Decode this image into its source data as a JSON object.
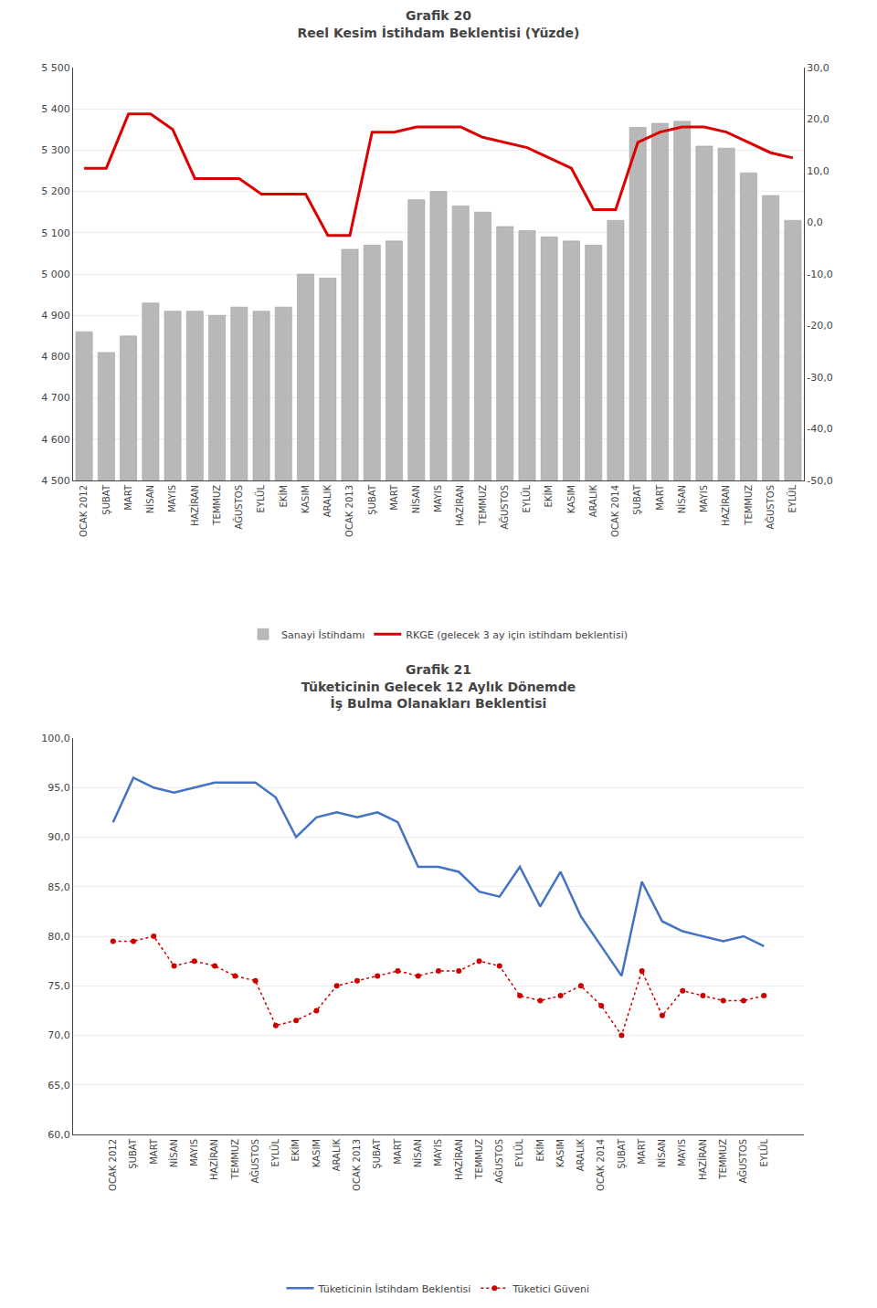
{
  "chart_data": [
    {
      "type": "bar",
      "title": "Grafik 20",
      "subtitle": "Reel Kesim İstihdam Beklentisi (Yüzde)",
      "categories": [
        "OCAK 2012",
        "ŞUBAT",
        "MART",
        "NİSAN",
        "MAYIS",
        "HAZİRAN",
        "TEMMUZ",
        "AĞUSTOS",
        "EYLÜL",
        "EKİM",
        "KASIM",
        "ARALIK",
        "OCAK 2013",
        "ŞUBAT",
        "MART",
        "NİSAN",
        "MAYIS",
        "HAZİRAN",
        "TEMMUZ",
        "AĞUSTOS",
        "EYLÜL",
        "EKİM",
        "KASIM",
        "ARALIK",
        "OCAK 2014",
        "ŞUBAT",
        "MART",
        "NİSAN",
        "MAYIS",
        "HAZİRAN",
        "TEMMUZ",
        "AĞUSTOS",
        "EYLÜL"
      ],
      "series": [
        {
          "name": "Sanayi İstihdamı",
          "type": "bar",
          "color": "#b8b8b8",
          "values": [
            4860,
            4810,
            4850,
            4930,
            4910,
            4910,
            4900,
            4920,
            4910,
            4920,
            5000,
            4990,
            5060,
            5070,
            5080,
            5180,
            5200,
            5165,
            5150,
            5115,
            5105,
            5090,
            5080,
            5070,
            5130,
            5355,
            5365,
            5370,
            5310,
            5305,
            5245,
            5190,
            5130
          ]
        },
        {
          "name": "RKGE (gelecek 3 ay için istihdam beklentisi)",
          "type": "line",
          "color": "#dd0000",
          "axis": "y2",
          "line_style": "solid",
          "values": [
            10.5,
            10.5,
            21.0,
            21.0,
            18.0,
            8.5,
            8.5,
            8.5,
            5.5,
            5.5,
            5.5,
            -2.5,
            -2.5,
            17.5,
            17.5,
            18.5,
            18.5,
            18.5,
            16.5,
            15.5,
            14.5,
            12.5,
            10.5,
            2.5,
            2.5,
            15.5,
            17.5,
            18.5,
            18.5,
            17.5,
            15.5,
            13.5,
            12.5
          ]
        }
      ],
      "ylim": [
        4500,
        5500
      ],
      "yticks": [
        {
          "value": 4500,
          "label": "4 500"
        },
        {
          "value": 4600,
          "label": "4 600"
        },
        {
          "value": 4700,
          "label": "4 700"
        },
        {
          "value": 4800,
          "label": "4 800"
        },
        {
          "value": 4900,
          "label": "4 900"
        },
        {
          "value": 5000,
          "label": "5 000"
        },
        {
          "value": 5100,
          "label": "5 100"
        },
        {
          "value": 5200,
          "label": "5 200"
        },
        {
          "value": 5300,
          "label": "5 300"
        },
        {
          "value": 5400,
          "label": "5 400"
        },
        {
          "value": 5500,
          "label": "5 500"
        }
      ],
      "y2lim": [
        -50,
        30
      ],
      "y2ticks": [
        {
          "value": -50,
          "label": "-50,0"
        },
        {
          "value": -40,
          "label": "-40,0"
        },
        {
          "value": -30,
          "label": "-30,0"
        },
        {
          "value": -20,
          "label": "-20,0"
        },
        {
          "value": -10,
          "label": "-10,0"
        },
        {
          "value": 0,
          "label": "0,0"
        },
        {
          "value": 10,
          "label": "10,0"
        },
        {
          "value": 20,
          "label": "20,0"
        },
        {
          "value": 30,
          "label": "30,0"
        }
      ],
      "grid": true,
      "legend": "bottom"
    },
    {
      "type": "line",
      "title": "Grafik 21",
      "subtitle": "Tüketicinin Gelecek 12 Aylık Dönemde\nİş Bulma Olanakları Beklentisi",
      "categories": [
        "OCAK 2012",
        "ŞUBAT",
        "MART",
        "NİSAN",
        "MAYIS",
        "HAZİRAN",
        "TEMMUZ",
        "AĞUSTOS",
        "EYLÜL",
        "EKİM",
        "KASIM",
        "ARALIK",
        "OCAK 2013",
        "ŞUBAT",
        "MART",
        "NİSAN",
        "MAYIS",
        "HAZİRAN",
        "TEMMUZ",
        "AĞUSTOS",
        "EYLÜL",
        "EKİM",
        "KASIM",
        "ARALIK",
        "OCAK 2014",
        "ŞUBAT",
        "MART",
        "NİSAN",
        "MAYIS",
        "HAZİRAN",
        "TEMMUZ",
        "AĞUSTOS",
        "EYLÜL"
      ],
      "series": [
        {
          "name": "Tüketicinin İstihdam Beklentisi",
          "type": "line",
          "color": "#4472c4",
          "line_style": "solid",
          "values": [
            91.5,
            96.0,
            95.0,
            94.5,
            95.0,
            95.5,
            95.5,
            95.5,
            94.0,
            90.0,
            92.0,
            92.5,
            92.0,
            92.5,
            91.5,
            87.0,
            87.0,
            86.5,
            84.5,
            84.0,
            87.0,
            83.0,
            86.5,
            82.0,
            79.0,
            76.0,
            85.5,
            81.5,
            80.5,
            80.0,
            79.5,
            80.0,
            79.0
          ]
        },
        {
          "name": "Tüketici Güveni",
          "type": "line",
          "color": "#cc0000",
          "line_style": "dotted",
          "marker": "circle",
          "values": [
            79.5,
            79.5,
            80.0,
            77.0,
            77.5,
            77.0,
            76.0,
            75.5,
            71.0,
            71.5,
            72.5,
            75.0,
            75.5,
            76.0,
            76.5,
            76.0,
            76.5,
            76.5,
            77.5,
            77.0,
            74.0,
            73.5,
            74.0,
            75.0,
            73.0,
            70.0,
            76.5,
            72.0,
            74.5,
            74.0,
            73.5,
            73.5,
            74.0
          ]
        }
      ],
      "ylim": [
        60.0,
        100.0
      ],
      "yticks": [
        {
          "value": 60.0,
          "label": "60,0"
        },
        {
          "value": 65.0,
          "label": "65,0"
        },
        {
          "value": 70.0,
          "label": "70,0"
        },
        {
          "value": 75.0,
          "label": "75,0"
        },
        {
          "value": 80.0,
          "label": "80,0"
        },
        {
          "value": 85.0,
          "label": "85,0"
        },
        {
          "value": 90.0,
          "label": "90,0"
        },
        {
          "value": 95.0,
          "label": "95,0"
        },
        {
          "value": 100.0,
          "label": "100,0"
        }
      ],
      "grid": true,
      "legend": "bottom"
    }
  ]
}
